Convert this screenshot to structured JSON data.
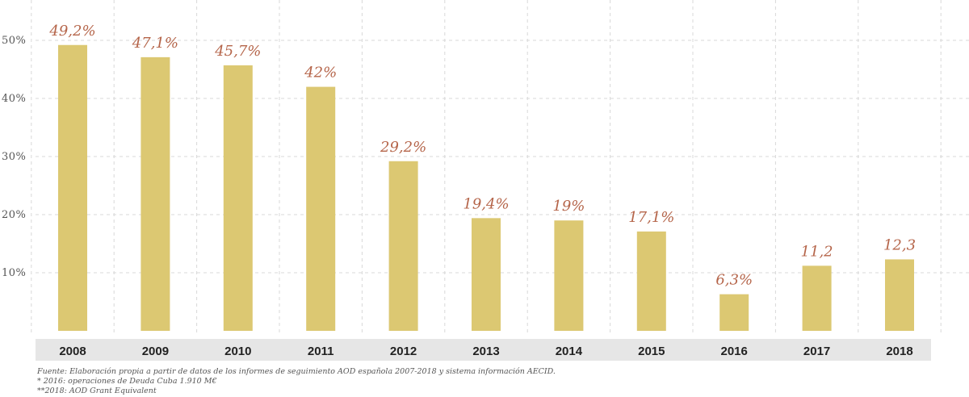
{
  "chart_data": {
    "type": "bar",
    "categories": [
      "2008",
      "2009",
      "2010",
      "2011",
      "2012",
      "2013",
      "2014",
      "2015",
      "2016",
      "2017",
      "2018"
    ],
    "values": [
      49.2,
      47.1,
      45.7,
      42,
      29.2,
      19.4,
      19,
      17.1,
      6.3,
      11.2,
      12.3
    ],
    "data_labels": [
      "49,2%",
      "47,1%",
      "45,7%",
      "42%",
      "29,2%",
      "19,4%",
      "19%",
      "17,1%",
      "6,3%",
      "11,2",
      "12,3"
    ],
    "yticks": [
      10,
      20,
      30,
      40,
      50
    ],
    "ytick_labels": [
      "10%",
      "20%",
      "30%",
      "40%",
      "50%"
    ],
    "ylim": [
      0,
      55
    ],
    "grid": true,
    "colors": {
      "bar": "#dcc872",
      "data_label": "#b5654a",
      "axis_band": "#e6e6e6"
    }
  },
  "notes": {
    "source": "Fuente: Elaboración propia a partir de datos de los informes de seguimiento AOD española 2007-2018 y sistema información AECID.",
    "note1": "* 2016: operaciones de Deuda Cuba 1.910 M€",
    "note2": "**2018: AOD Grant Equivalent"
  }
}
